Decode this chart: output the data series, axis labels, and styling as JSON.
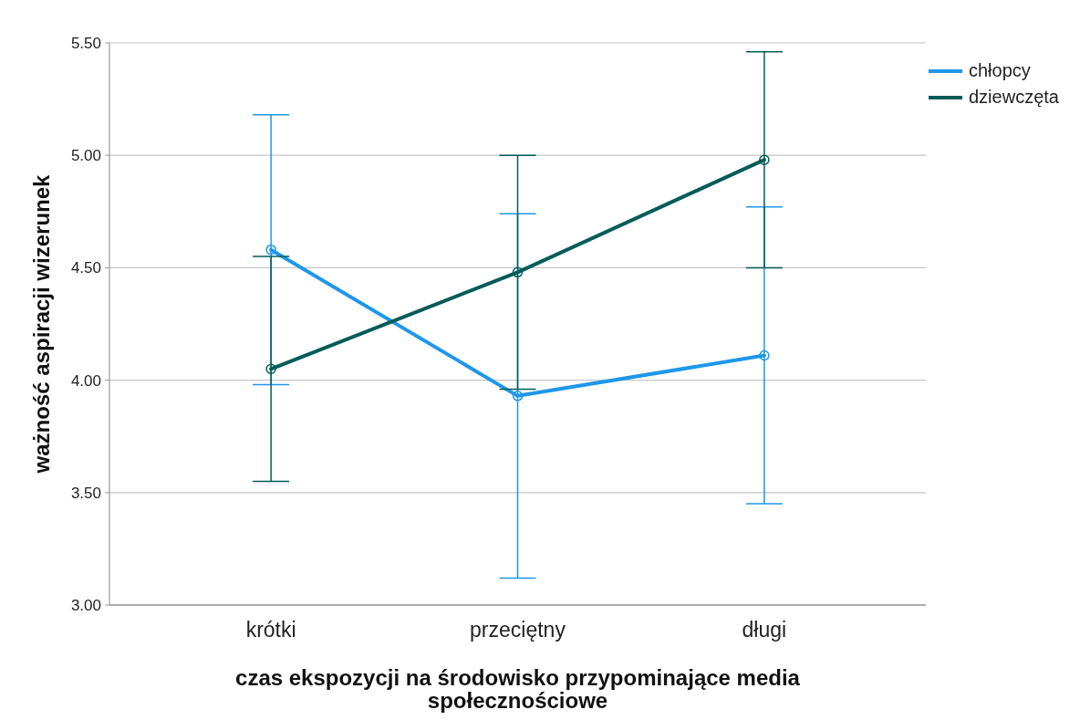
{
  "chart_data": {
    "type": "line",
    "xlabel": "czas ekspozycji na środowisko przypominające media społecznościowe",
    "ylabel": "ważność aspiracji wizerunek",
    "categories": [
      "krótki",
      "przeciętny",
      "długi"
    ],
    "series": [
      {
        "name": "chłopcy",
        "color": "#1f97e9",
        "values": [
          4.58,
          3.93,
          4.11
        ],
        "errors": [
          0.6,
          0.81,
          0.66
        ]
      },
      {
        "name": "dziewczęta",
        "color": "#035c58",
        "values": [
          4.05,
          4.48,
          4.98
        ],
        "errors": [
          0.5,
          0.52,
          0.48
        ]
      }
    ],
    "ylim": [
      3,
      5.5
    ],
    "yticks": [
      {
        "value": 3,
        "label": "3.00"
      },
      {
        "value": 3.5,
        "label": "3.50"
      },
      {
        "value": 4,
        "label": "4.00"
      },
      {
        "value": 4.5,
        "label": "4.50"
      },
      {
        "value": 5,
        "label": "5.00"
      },
      {
        "value": 5.5,
        "label": "5.50"
      }
    ],
    "grid": "y",
    "legend": "top right",
    "marker": "circle",
    "line_style": "solid"
  }
}
